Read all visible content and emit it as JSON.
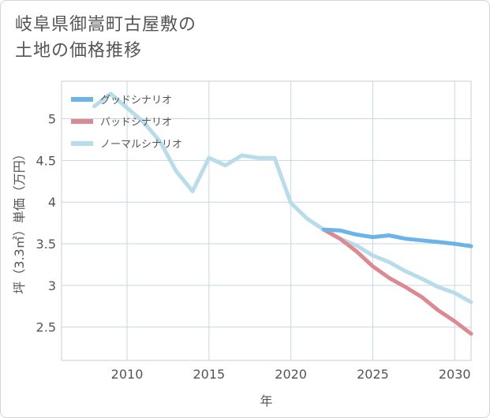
{
  "title": {
    "line1": "岐阜県御嵩町古屋敷の",
    "line2": "土地の価格推移"
  },
  "chart_data": {
    "type": "line",
    "xlabel": "年",
    "ylabel": "坪（3.3㎡）単価（万円）",
    "xlim": [
      2006,
      2031
    ],
    "ylim": [
      2.1,
      5.45
    ],
    "x_ticks": [
      2010,
      2015,
      2020,
      2025,
      2030
    ],
    "y_ticks": [
      2.5,
      3,
      3.5,
      4,
      4.5,
      5
    ],
    "grid": true,
    "legend_position": "top-left",
    "series": [
      {
        "name": "グッドシナリオ",
        "color": "#6cb4e8",
        "x": [
          2022,
          2023,
          2024,
          2025,
          2026,
          2027,
          2028,
          2029,
          2030,
          2031
        ],
        "y": [
          3.67,
          3.66,
          3.61,
          3.58,
          3.6,
          3.56,
          3.54,
          3.52,
          3.5,
          3.47
        ]
      },
      {
        "name": "バッドシナリオ",
        "color": "#dc8a92",
        "x": [
          2022,
          2023,
          2024,
          2025,
          2026,
          2027,
          2028,
          2029,
          2030,
          2031
        ],
        "y": [
          3.67,
          3.56,
          3.41,
          3.23,
          3.09,
          2.98,
          2.86,
          2.7,
          2.57,
          2.42
        ]
      },
      {
        "name": "ノーマルシナリオ",
        "color": "#b8dcea",
        "x": [
          2008,
          2009,
          2010,
          2011,
          2012,
          2013,
          2014,
          2015,
          2016,
          2017,
          2018,
          2019,
          2020,
          2021,
          2022,
          2023,
          2024,
          2025,
          2026,
          2027,
          2028,
          2029,
          2030,
          2031
        ],
        "y": [
          5.15,
          5.3,
          5.13,
          4.96,
          4.73,
          4.37,
          4.13,
          4.53,
          4.44,
          4.56,
          4.53,
          4.53,
          3.99,
          3.8,
          3.67,
          3.56,
          3.48,
          3.36,
          3.28,
          3.17,
          3.08,
          2.98,
          2.91,
          2.8
        ]
      }
    ]
  }
}
